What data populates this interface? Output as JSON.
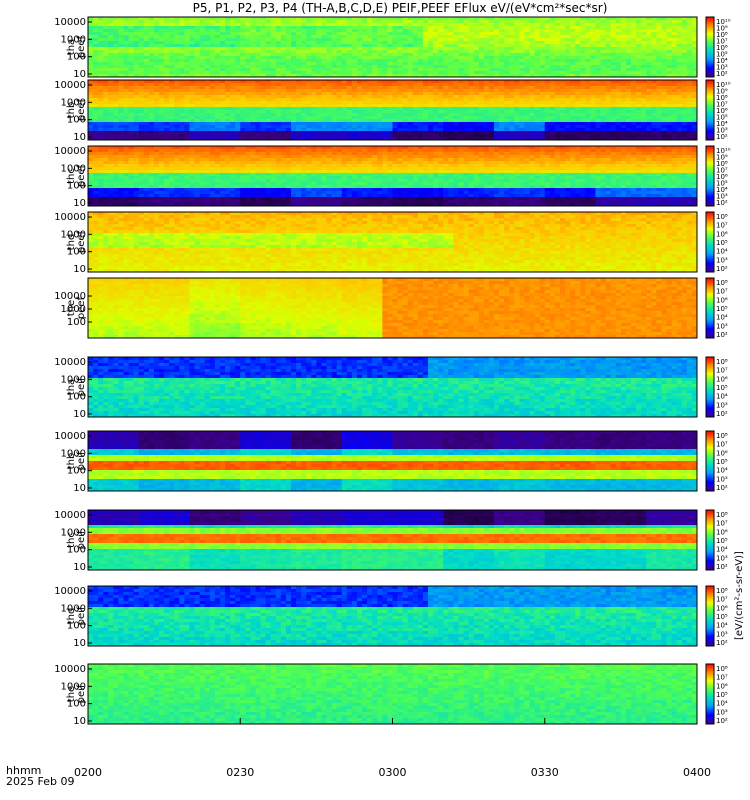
{
  "chart_data": {
    "type": "heatmap",
    "title": "P5, P1, P2, P3, P4 (TH-A,B,C,D,E) PEIF,PEEF EFlux eV/(eV*cm²*sec*sr)",
    "colorbar_label": "[eV/(cm²-s-sr-eV)]",
    "x_axis_label": "hhmm",
    "date_label": "2025 Feb 09",
    "x_ticks": [
      "0200",
      "0230",
      "0300",
      "0330",
      "0400"
    ],
    "x_range": [
      "02:00",
      "04:00"
    ],
    "y_scale": "log",
    "colormap": "rainbow",
    "panels": [
      {
        "probe": "tha",
        "species": "peef",
        "y_ticks": [
          "10",
          "100",
          "1000",
          "10000"
        ],
        "cb_ticks": [
          "10²",
          "10³",
          "10⁴",
          "10⁵",
          "10⁶",
          "10⁷",
          "10⁸",
          "10⁹",
          "10¹⁰"
        ],
        "pattern": "electron_quiet"
      },
      {
        "probe": "thb",
        "species": "peef",
        "y_ticks": [
          "10",
          "100",
          "1000",
          "10000"
        ],
        "cb_ticks": [
          "10²",
          "10³",
          "10⁴",
          "10⁵",
          "10⁶",
          "10⁷",
          "10⁸",
          "10⁹",
          "10¹⁰"
        ],
        "pattern": "electron_hot"
      },
      {
        "probe": "thc",
        "species": "peef",
        "y_ticks": [
          "10",
          "100",
          "1000",
          "10000"
        ],
        "cb_ticks": [
          "10²",
          "10³",
          "10⁴",
          "10⁵",
          "10⁶",
          "10⁷",
          "10⁸",
          "10⁹",
          "10¹⁰"
        ],
        "pattern": "electron_hot"
      },
      {
        "probe": "thd",
        "species": "peef",
        "y_ticks": [
          "10",
          "100",
          "1000",
          "10000"
        ],
        "cb_ticks": [
          "10²",
          "10³",
          "10⁴",
          "10⁵",
          "10⁶",
          "10⁷",
          "10⁸"
        ],
        "pattern": "electron_warm"
      },
      {
        "probe": "the",
        "species": "peef",
        "y_ticks": [
          "100",
          "1000",
          "10000"
        ],
        "cb_ticks": [
          "10²",
          "10³",
          "10⁴",
          "10⁵",
          "10⁶",
          "10⁷",
          "10⁸"
        ],
        "pattern": "electron_warm2"
      },
      {
        "probe": "tha",
        "species": "peif",
        "y_ticks": [
          "10",
          "100",
          "1000",
          "10000"
        ],
        "cb_ticks": [
          "10²",
          "10³",
          "10⁴",
          "10⁵",
          "10⁶",
          "10⁷",
          "10⁸"
        ],
        "pattern": "ion_low"
      },
      {
        "probe": "thb",
        "species": "peif",
        "y_ticks": [
          "10",
          "100",
          "1000",
          "10000"
        ],
        "cb_ticks": [
          "10²",
          "10³",
          "10⁴",
          "10⁵",
          "10⁶",
          "10⁷",
          "10⁸"
        ],
        "pattern": "ion_band"
      },
      {
        "probe": "thc",
        "species": "peif",
        "y_ticks": [
          "10",
          "100",
          "1000",
          "10000"
        ],
        "cb_ticks": [
          "10²",
          "10³",
          "10⁴",
          "10⁵",
          "10⁶",
          "10⁷",
          "10⁸"
        ],
        "pattern": "ion_band2"
      },
      {
        "probe": "thd",
        "species": "peif",
        "y_ticks": [
          "10",
          "100",
          "1000",
          "10000"
        ],
        "cb_ticks": [
          "10²",
          "10³",
          "10⁴",
          "10⁵",
          "10⁶",
          "10⁷",
          "10⁸"
        ],
        "pattern": "ion_low"
      },
      {
        "probe": "the",
        "species": "peif",
        "y_ticks": [
          "10",
          "100",
          "1000",
          "10000"
        ],
        "cb_ticks": [
          "10²",
          "10³",
          "10⁴",
          "10⁵",
          "10⁶",
          "10⁷",
          "10⁸"
        ],
        "pattern": "ion_flat"
      }
    ]
  }
}
